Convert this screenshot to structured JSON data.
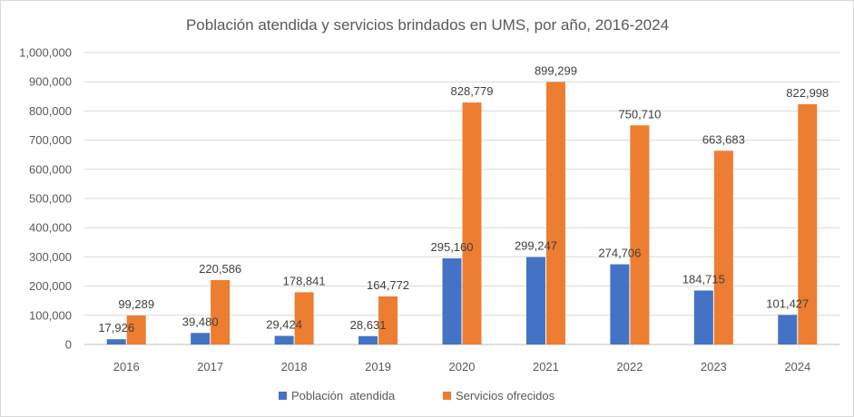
{
  "chart_data": {
    "type": "bar",
    "title": "Población atendida y servicios brindados en UMS, por año, 2016-2024",
    "xlabel": "",
    "ylabel": "",
    "categories": [
      "2016",
      "2017",
      "2018",
      "2019",
      "2020",
      "2021",
      "2022",
      "2023",
      "2024"
    ],
    "series": [
      {
        "name": "Población  atendida",
        "color": "#4472C4",
        "values": [
          17926,
          39480,
          29424,
          28631,
          295160,
          299247,
          274706,
          184715,
          101427
        ],
        "labels": [
          "17,926",
          "39,480",
          "29,424",
          "28,631",
          "295,160",
          "299,247",
          "274,706",
          "184,715",
          "101,427"
        ]
      },
      {
        "name": "Servicios ofrecidos",
        "color": "#ED7D31",
        "values": [
          99289,
          220586,
          178841,
          164772,
          828779,
          899299,
          750710,
          663683,
          822998
        ],
        "labels": [
          "99,289",
          "220,586",
          "178,841",
          "164,772",
          "828,779",
          "899,299",
          "750,710",
          "663,683",
          "822,998"
        ]
      }
    ],
    "ylim": [
      0,
      1000000
    ],
    "yticks": [
      0,
      100000,
      200000,
      300000,
      400000,
      500000,
      600000,
      700000,
      800000,
      900000,
      1000000
    ],
    "ytick_labels": [
      "0",
      "100,000",
      "200,000",
      "300,000",
      "400,000",
      "500,000",
      "600,000",
      "700,000",
      "800,000",
      "900,000",
      "1,000,000"
    ],
    "grid": true,
    "legend_position": "bottom"
  }
}
